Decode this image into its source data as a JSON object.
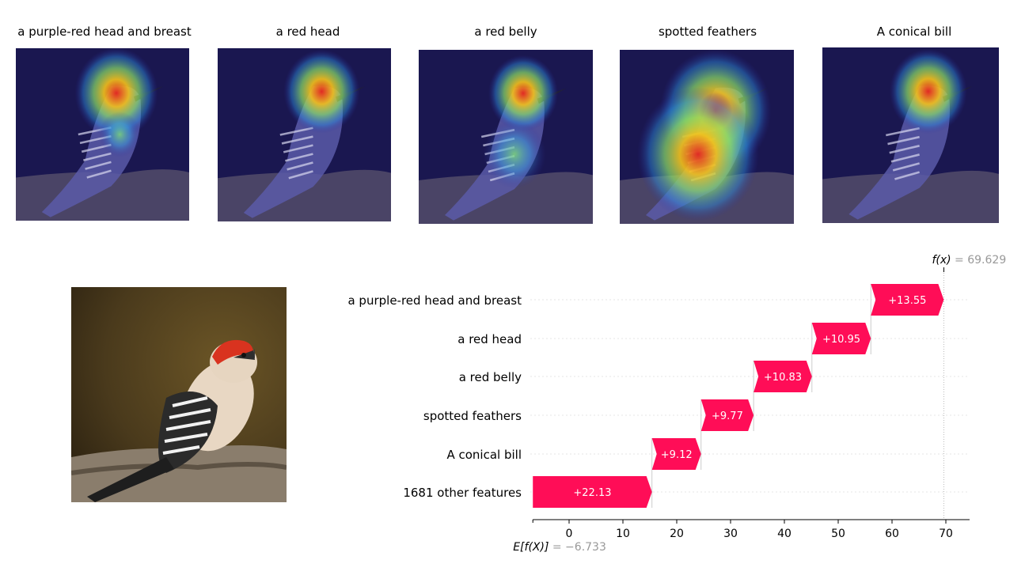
{
  "heatmap_panels": [
    {
      "title": "a purple-red head and breast",
      "focus": "head-breast"
    },
    {
      "title": "a red head",
      "focus": "head"
    },
    {
      "title": "a red belly",
      "focus": "head-belly"
    },
    {
      "title": "spotted feathers",
      "focus": "body"
    },
    {
      "title": "A conical bill",
      "focus": "head"
    }
  ],
  "colors": {
    "bar": "#ff0d57",
    "bar_text": "#ffffff",
    "annotation_gray": "#999999",
    "heatmap_background": "#1a1750",
    "photo_background": "#4a3a1c"
  },
  "chart_data": {
    "type": "waterfall",
    "base_value_label": "E[f(X)]",
    "base_value": "−6.733",
    "output_value_label": "f(x)",
    "output_value": "69.629",
    "xlim": [
      -6.733,
      74
    ],
    "xticks": [
      0,
      10,
      20,
      30,
      40,
      50,
      60,
      70
    ],
    "features": [
      {
        "name": "a purple-red head and breast",
        "value": 13.55,
        "label": "+13.55"
      },
      {
        "name": "a red head",
        "value": 10.95,
        "label": "+10.95"
      },
      {
        "name": "a red belly",
        "value": 10.83,
        "label": "+10.83"
      },
      {
        "name": "spotted feathers",
        "value": 9.77,
        "label": "+9.77"
      },
      {
        "name": "A conical bill",
        "value": 9.12,
        "label": "+9.12"
      },
      {
        "name": "1681 other features",
        "value": 22.13,
        "label": "+22.13"
      }
    ]
  }
}
